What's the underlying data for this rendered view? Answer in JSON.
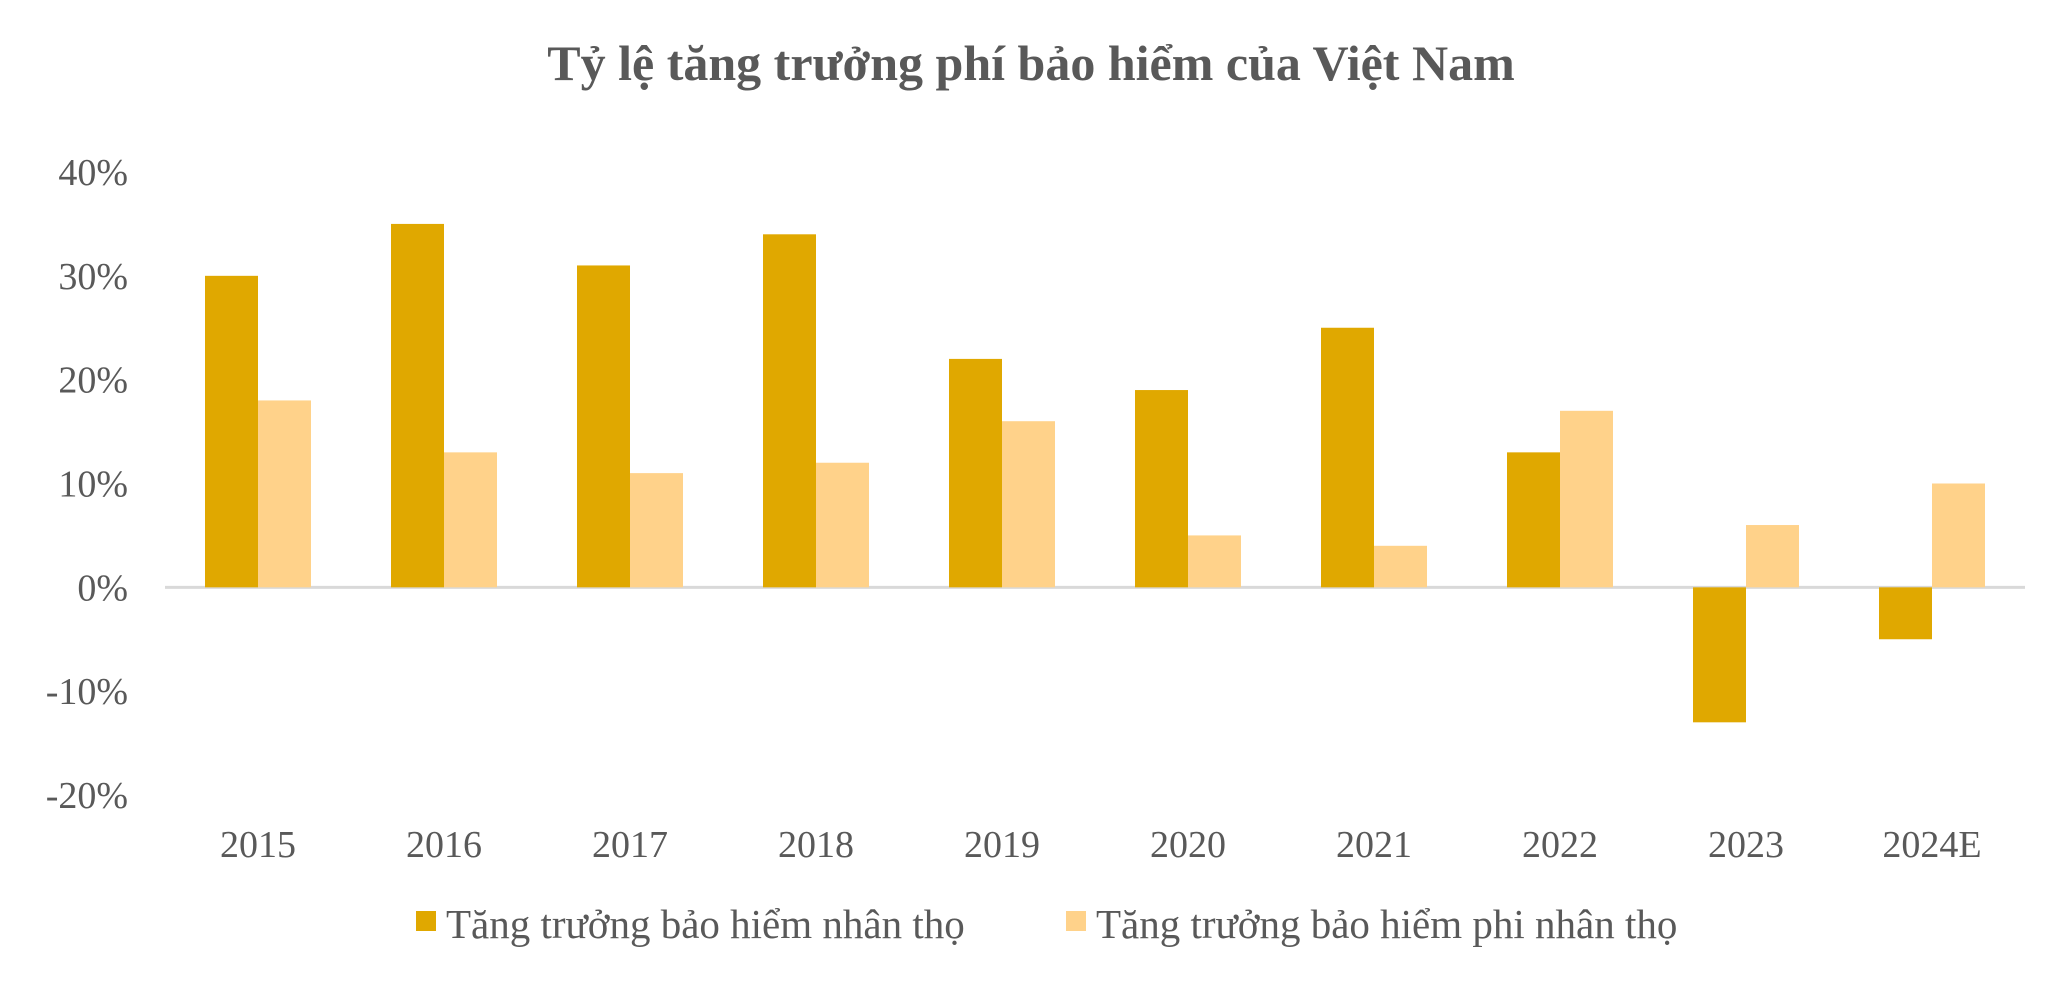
{
  "chart_data": {
    "type": "bar",
    "title": "Tỷ lệ tăng trưởng phí bảo hiểm của Việt Nam",
    "xlabel": "",
    "ylabel": "",
    "categories": [
      "2015",
      "2016",
      "2017",
      "2018",
      "2019",
      "2020",
      "2021",
      "2022",
      "2023",
      "2024E"
    ],
    "series": [
      {
        "name": "Tăng trưởng bảo hiểm nhân thọ",
        "color": "#E0A800",
        "values": [
          30,
          35,
          31,
          34,
          22,
          19,
          25,
          13,
          -13,
          -5
        ]
      },
      {
        "name": "Tăng trưởng bảo hiểm phi nhân thọ",
        "color": "#FFD28A",
        "values": [
          18,
          13,
          11,
          12,
          16,
          5,
          4,
          17,
          6,
          10
        ]
      }
    ],
    "ylim": [
      -20,
      40
    ],
    "yticks": [
      40,
      30,
      20,
      10,
      0,
      -10,
      -20
    ],
    "ytick_labels": [
      "40%",
      "30%",
      "20%",
      "10%",
      "0%",
      "-10%",
      "-20%"
    ],
    "grid": false,
    "legend_position": "bottom"
  }
}
